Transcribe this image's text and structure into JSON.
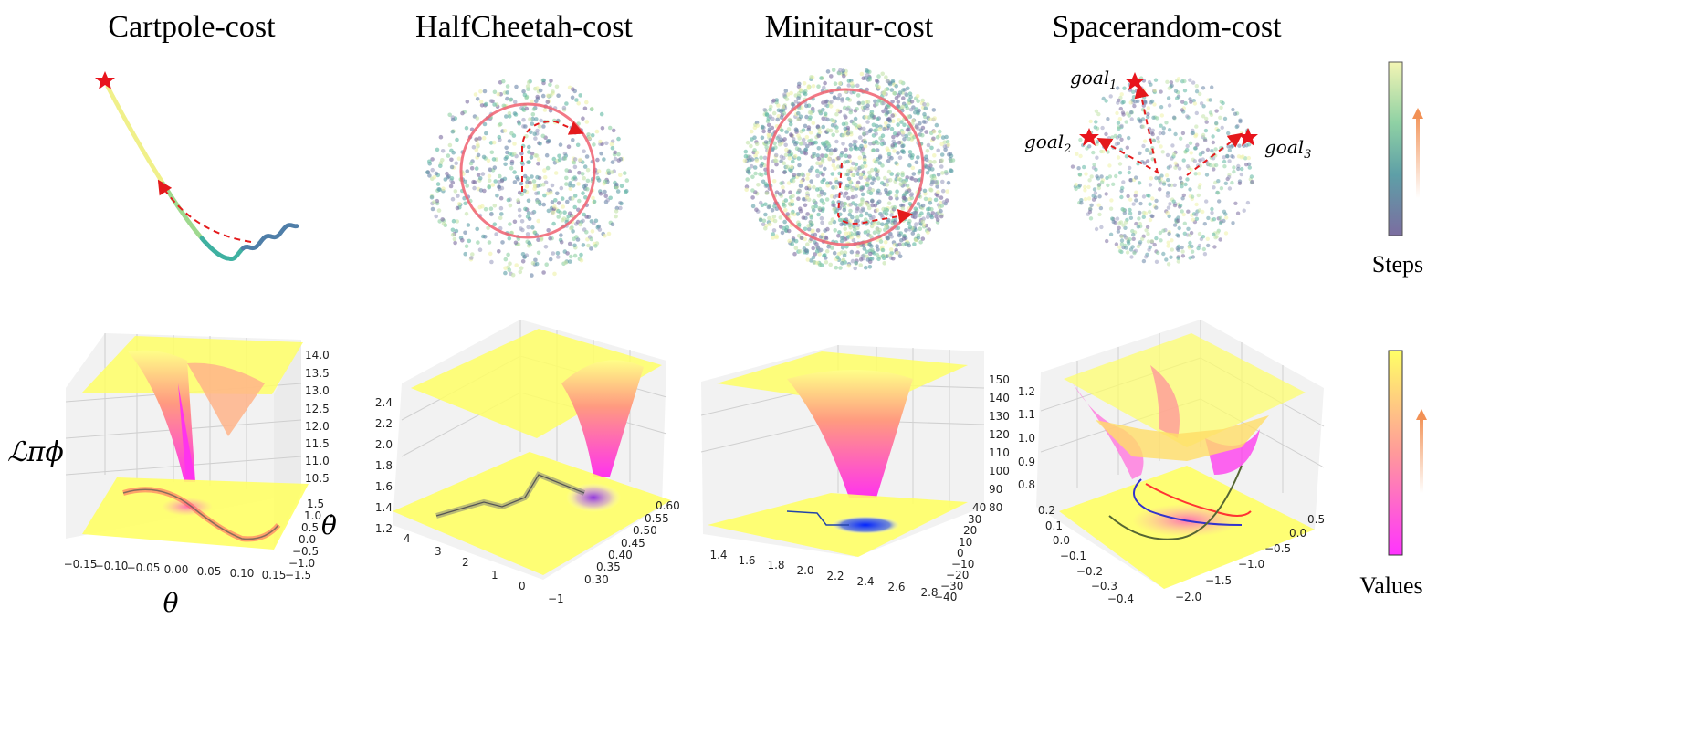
{
  "figure": {
    "top_titles": [
      "Cartpole-cost",
      "HalfCheetah-cost",
      "Minitaur-cost",
      "Spacerandom-cost"
    ],
    "colorbar_steps_label": "Steps",
    "colorbar_values_label": "Values",
    "ylabel_left": "ℒπϕ",
    "cartpole_xlabel": "θ",
    "cartpole_ylabel": "θ̇",
    "goal_labels": [
      "goal1",
      "goal2",
      "goal3"
    ],
    "colors": {
      "viridis_start": "#440154",
      "viridis_mid": "#21918c",
      "viridis_end": "#fde725",
      "start_star": "#e8141c",
      "arrow": "#e41a1c",
      "circle": "#f06070",
      "surface_top": "#ffff66",
      "surface_bottom": "#ff33ff"
    }
  },
  "chart_data": [
    {
      "type": "scatter",
      "title": "Cartpole-cost",
      "description": "state trajectory colored by steps",
      "colormap": "viridis"
    },
    {
      "type": "scatter",
      "title": "HalfCheetah-cost",
      "colormap": "viridis"
    },
    {
      "type": "scatter",
      "title": "Minitaur-cost",
      "colormap": "viridis"
    },
    {
      "type": "scatter",
      "title": "Spacerandom-cost",
      "goals": [
        "goal1",
        "goal2",
        "goal3"
      ],
      "colormap": "viridis"
    },
    {
      "type": "surface",
      "panel": "Cartpole-cost",
      "xlabel": "θ",
      "ylabel": "θ̇",
      "zlabel": "ℒπϕ",
      "x_ticks": [
        "−0.15",
        "−0.10",
        "−0.05",
        "0.00",
        "0.05",
        "0.10",
        "0.15"
      ],
      "y_ticks": [
        "−1.5",
        "−1.0",
        "−0.5",
        "0.0",
        "0.5",
        "1.0",
        "1.5"
      ],
      "z_ticks": [
        "10.5",
        "11.0",
        "11.5",
        "12.0",
        "12.5",
        "13.0",
        "13.5",
        "14.0"
      ]
    },
    {
      "type": "surface",
      "panel": "HalfCheetah-cost",
      "x_ticks": [
        "4",
        "3",
        "2",
        "1",
        "0",
        "−1"
      ],
      "y_ticks": [
        "0.30",
        "0.35",
        "0.40",
        "0.45",
        "0.50",
        "0.55",
        "0.60"
      ],
      "z_ticks": [
        "1.2",
        "1.4",
        "1.6",
        "1.8",
        "2.0",
        "2.2",
        "2.4"
      ]
    },
    {
      "type": "surface",
      "panel": "Minitaur-cost",
      "x_ticks": [
        "1.4",
        "1.6",
        "1.8",
        "2.0",
        "2.2",
        "2.4",
        "2.6",
        "2.8"
      ],
      "y_ticks": [
        "−40",
        "−30",
        "−20",
        "−10",
        "0",
        "10",
        "20",
        "30",
        "40"
      ],
      "z_ticks": [
        "80",
        "90",
        "100",
        "110",
        "120",
        "130",
        "140",
        "150"
      ]
    },
    {
      "type": "surface",
      "panel": "Spacerandom-cost",
      "x_ticks": [
        "0.2",
        "0.1",
        "0.0",
        "−0.1",
        "−0.2",
        "−0.3",
        "−0.4"
      ],
      "y_ticks": [
        "−2.0",
        "−1.5",
        "−1.0",
        "−0.5",
        "0.0",
        "0.5"
      ],
      "z_ticks": [
        "0.8",
        "0.9",
        "1.0",
        "1.1",
        "1.2"
      ]
    }
  ]
}
